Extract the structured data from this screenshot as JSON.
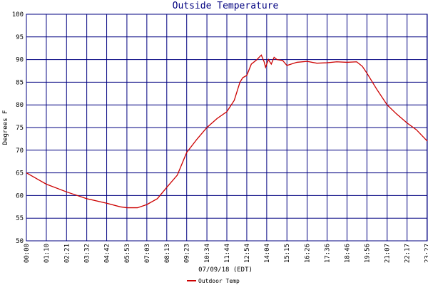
{
  "chart_data": {
    "type": "line",
    "title": "Outside Temperature",
    "x_label": "07/09/18 (EDT)",
    "y_label": "Degrees F",
    "x": [
      0,
      70,
      141,
      212,
      282,
      330,
      353,
      390,
      423,
      460,
      493,
      530,
      563,
      600,
      634,
      670,
      704,
      730,
      750,
      760,
      774,
      790,
      810,
      825,
      835,
      840,
      850,
      860,
      870,
      880,
      900,
      915,
      950,
      986,
      1020,
      1056,
      1090,
      1126,
      1160,
      1180,
      1196,
      1230,
      1267,
      1300,
      1337,
      1370,
      1408
    ],
    "series": [
      {
        "name": "Outdoor Temp",
        "color": "#cc0000",
        "values": [
          65,
          62.5,
          60.8,
          59.3,
          58.3,
          57.5,
          57.3,
          57.3,
          58,
          59.3,
          61.8,
          64.5,
          69.5,
          72.5,
          75,
          77,
          78.5,
          81,
          85,
          86,
          86.5,
          89,
          90,
          91,
          89.5,
          88.3,
          90,
          89,
          90.5,
          90,
          89.8,
          88.7,
          89.4,
          89.6,
          89.2,
          89.3,
          89.5,
          89.4,
          89.5,
          88.5,
          87,
          83.5,
          80,
          78,
          76,
          74.5,
          72
        ]
      }
    ],
    "xlim": [
      0,
      1408
    ],
    "ylim": [
      50,
      100
    ],
    "xticks": [
      {
        "value": 0,
        "label": "00:00"
      },
      {
        "value": 70,
        "label": "01:10"
      },
      {
        "value": 141,
        "label": "02:21"
      },
      {
        "value": 212,
        "label": "03:32"
      },
      {
        "value": 282,
        "label": "04:42"
      },
      {
        "value": 353,
        "label": "05:53"
      },
      {
        "value": 423,
        "label": "07:03"
      },
      {
        "value": 493,
        "label": "08:13"
      },
      {
        "value": 563,
        "label": "09:23"
      },
      {
        "value": 634,
        "label": "10:34"
      },
      {
        "value": 704,
        "label": "11:44"
      },
      {
        "value": 774,
        "label": "12:54"
      },
      {
        "value": 844,
        "label": "14:04"
      },
      {
        "value": 915,
        "label": "15:15"
      },
      {
        "value": 986,
        "label": "16:26"
      },
      {
        "value": 1056,
        "label": "17:36"
      },
      {
        "value": 1126,
        "label": "18:46"
      },
      {
        "value": 1196,
        "label": "19:56"
      },
      {
        "value": 1267,
        "label": "21:07"
      },
      {
        "value": 1337,
        "label": "22:17"
      },
      {
        "value": 1407,
        "label": "23:27"
      }
    ],
    "yticks": [
      50,
      55,
      60,
      65,
      70,
      75,
      80,
      85,
      90,
      95,
      100
    ],
    "grid": true,
    "grid_color": "#000080"
  }
}
